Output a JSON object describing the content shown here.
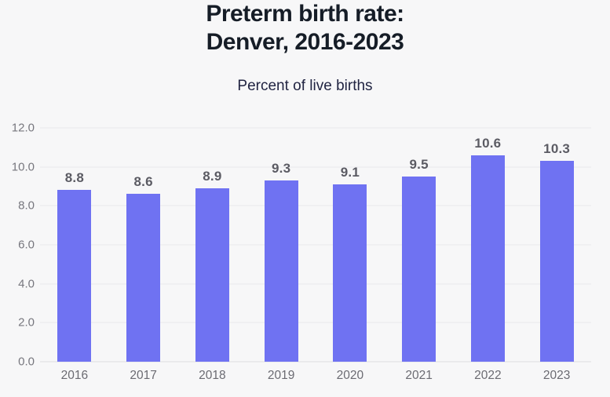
{
  "header": {
    "title_line1": "Preterm birth rate:",
    "title_line2": "Denver, 2016-2023",
    "subtitle": "Percent of live births"
  },
  "chart_data": {
    "type": "bar",
    "title": "Preterm birth rate: Denver, 2016-2023",
    "subtitle": "Percent of live births",
    "categories": [
      "2016",
      "2017",
      "2018",
      "2019",
      "2020",
      "2021",
      "2022",
      "2023"
    ],
    "values": [
      8.8,
      8.6,
      8.9,
      9.3,
      9.1,
      9.5,
      10.6,
      10.3
    ],
    "value_labels": [
      "8.8",
      "8.6",
      "8.9",
      "9.3",
      "9.1",
      "9.5",
      "10.6",
      "10.3"
    ],
    "xlabel": "",
    "ylabel": "",
    "ylim": [
      0,
      12
    ],
    "yticks": [
      0,
      2,
      4,
      6,
      8,
      10,
      12
    ],
    "ytick_labels": [
      "0.0",
      "2.0",
      "4.0",
      "6.0",
      "8.0",
      "10.0",
      "12.0"
    ],
    "grid": true,
    "legend": false,
    "colors": {
      "bar": "#6F72F2",
      "gridline": "#e9e9ec",
      "baseline": "#dcdce0",
      "ytick_label": "#77777e",
      "xtick_label": "#6b6b72",
      "value_label": "#5b5b63",
      "title": "#161d27",
      "subtitle": "#212442",
      "background": "#f7f7f8"
    }
  }
}
